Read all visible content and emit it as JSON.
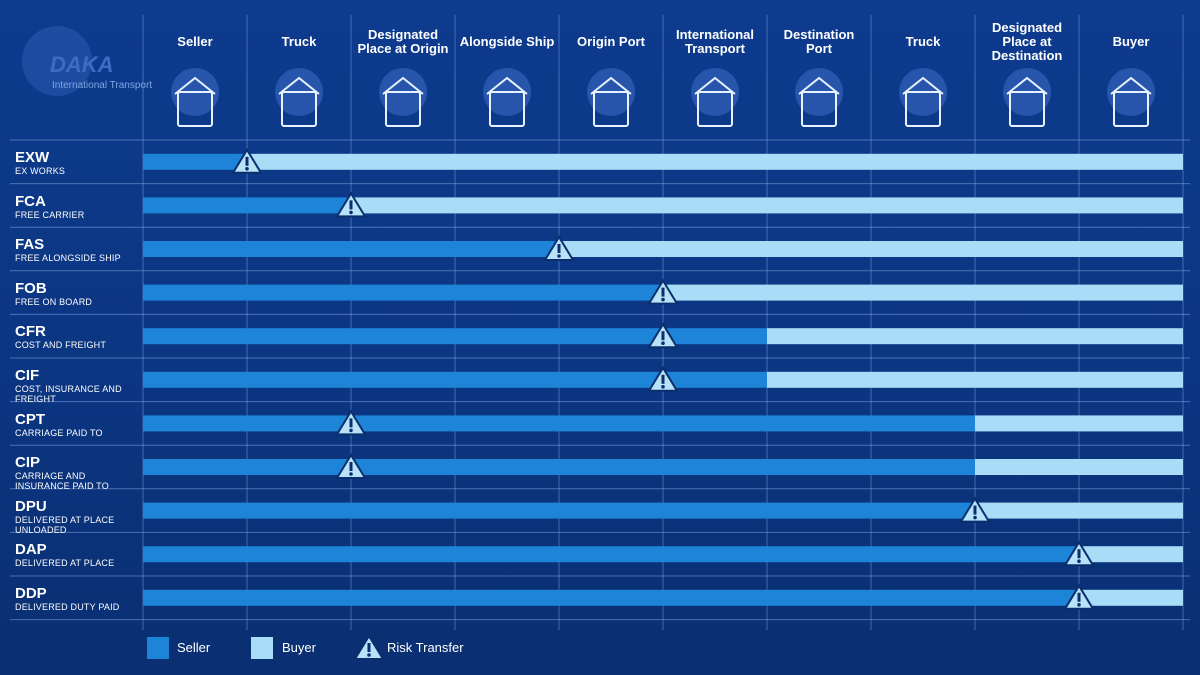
{
  "logo": {
    "name": "DAKA",
    "tagline": "International Transport"
  },
  "columns": [
    "Seller",
    "Truck",
    "Designated Place at Origin",
    "Alongside Ship",
    "Origin Port",
    "International Transport",
    "Destination Port",
    "Truck",
    "Designated Place at Destination",
    "Buyer"
  ],
  "rows": [
    {
      "code": "EXW",
      "name": "EX WORKS",
      "seller_until": 1,
      "risk_at": 1
    },
    {
      "code": "FCA",
      "name": "FREE CARRIER",
      "seller_until": 2,
      "risk_at": 2
    },
    {
      "code": "FAS",
      "name": "FREE ALONGSIDE SHIP",
      "seller_until": 4,
      "risk_at": 4
    },
    {
      "code": "FOB",
      "name": "FREE ON BOARD",
      "seller_until": 5,
      "risk_at": 5
    },
    {
      "code": "CFR",
      "name": "COST AND FREIGHT",
      "seller_until": 6,
      "risk_at": 5
    },
    {
      "code": "CIF",
      "name": "COST, INSURANCE AND FREIGHT",
      "seller_until": 6,
      "risk_at": 5
    },
    {
      "code": "CPT",
      "name": "CARRIAGE PAID TO",
      "seller_until": 8,
      "risk_at": 2
    },
    {
      "code": "CIP",
      "name": "CARRIAGE AND INSURANCE PAID TO",
      "seller_until": 8,
      "risk_at": 2
    },
    {
      "code": "DPU",
      "name": "DELIVERED AT PLACE UNLOADED",
      "seller_until": 8,
      "risk_at": 8
    },
    {
      "code": "DAP",
      "name": "DELIVERED AT PLACE",
      "seller_until": 9,
      "risk_at": 9
    },
    {
      "code": "DDP",
      "name": "DELIVERED DUTY PAID",
      "seller_until": 9,
      "risk_at": 9
    }
  ],
  "legend": {
    "seller": "Seller",
    "buyer": "Buyer",
    "risk": "Risk Transfer"
  }
}
